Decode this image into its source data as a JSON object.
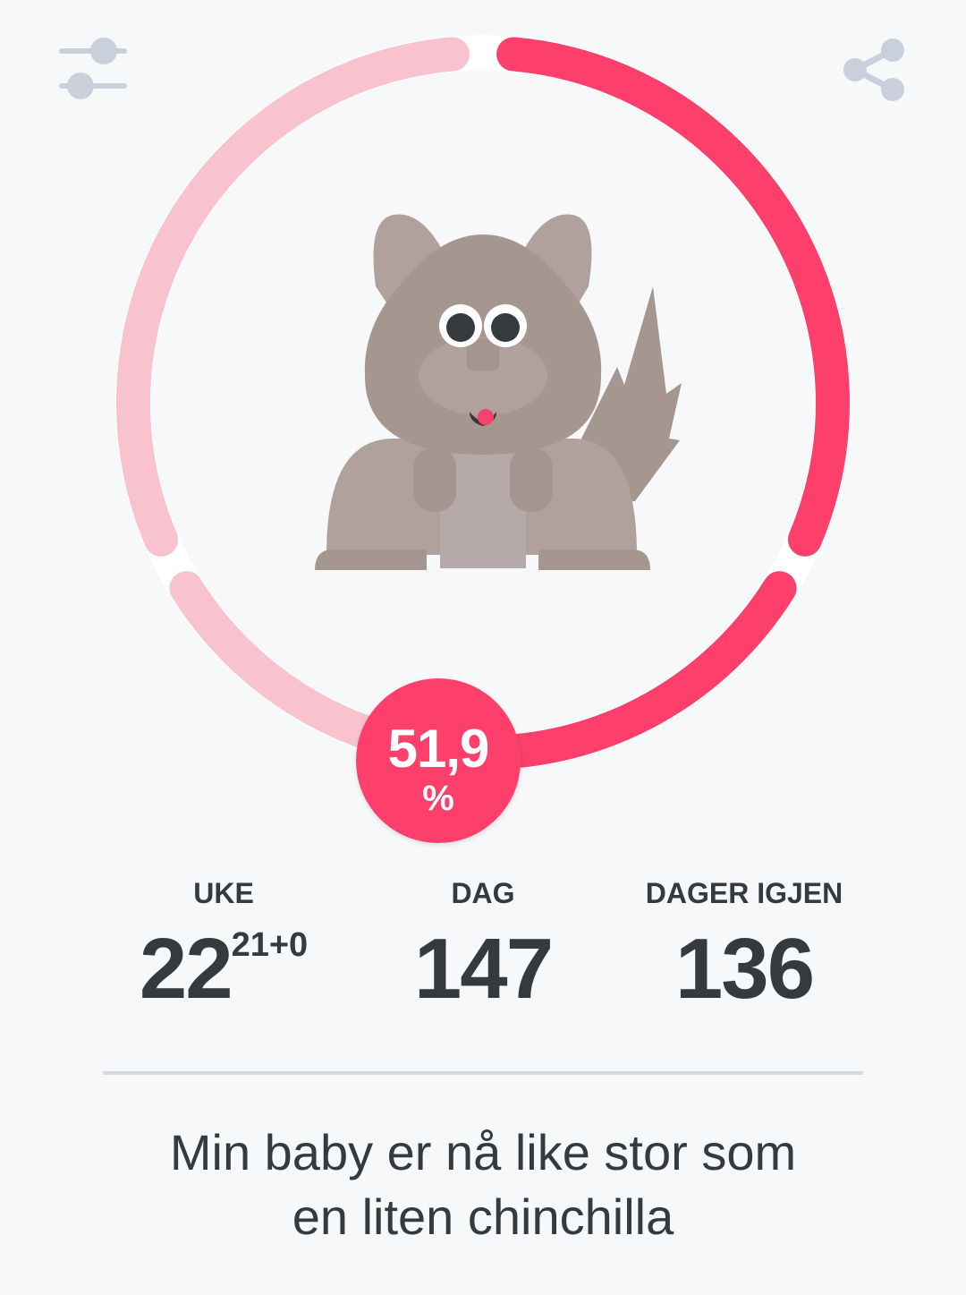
{
  "header": {
    "filter_icon": "sliders-icon",
    "share_icon": "share-icon"
  },
  "progress": {
    "percent": 51.9,
    "value_text": "51,9",
    "unit": "%"
  },
  "colors": {
    "accent": "#fc406b",
    "accent_light": "#f8c3cf",
    "icon": "#c9d0db",
    "animal": "#a59690"
  },
  "illustration": {
    "subject": "chinchilla"
  },
  "stats": [
    {
      "label": "UKE",
      "value": "22",
      "sup": "21+0"
    },
    {
      "label": "DAG",
      "value": "147"
    },
    {
      "label": "DAGER IGJEN",
      "value": "136"
    }
  ],
  "caption": {
    "line1": "Min baby er nå like stor som",
    "line2": "en liten chinchilla"
  }
}
